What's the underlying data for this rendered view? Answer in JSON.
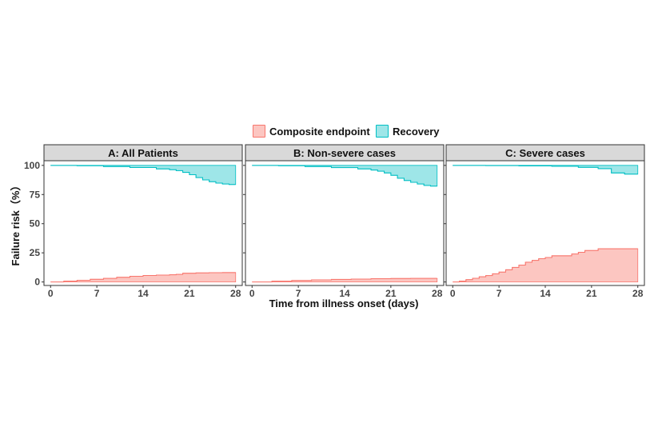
{
  "legend": [
    {
      "label": "Composite endpoint",
      "color": "#f8766d",
      "fill": "#fcc6c1"
    },
    {
      "label": "Recovery",
      "color": "#00bfc4",
      "fill": "#9ee6e8"
    }
  ],
  "axes": {
    "ylabel": "Failure risk（%）",
    "xlabel": "Time from illness onset (days)",
    "xticks": [
      0,
      7,
      14,
      21,
      28
    ],
    "yticks": [
      0,
      25,
      50,
      75,
      100
    ]
  },
  "chart_data": [
    {
      "type": "area",
      "title": "A: All Patients",
      "xlim": [
        -1,
        29
      ],
      "ylim": [
        -3,
        104
      ],
      "series": [
        {
          "name": "Composite endpoint",
          "x": [
            0,
            2,
            4,
            6,
            8,
            10,
            12,
            14,
            16,
            18,
            19,
            20,
            22,
            24,
            26,
            28
          ],
          "y": [
            0,
            0.8,
            1.5,
            2.3,
            3.1,
            4.0,
            4.9,
            5.6,
            5.9,
            6.2,
            6.5,
            7.5,
            7.8,
            8.0,
            8.1,
            8.1
          ]
        },
        {
          "name": "Recovery",
          "x": [
            0,
            4,
            8,
            12,
            16,
            18,
            19,
            20,
            21,
            22,
            23,
            24,
            25,
            26,
            27,
            28
          ],
          "y": [
            100,
            99.7,
            99,
            98.2,
            97,
            96.3,
            95.5,
            94,
            92,
            89.5,
            87.5,
            86,
            84.8,
            84,
            83.6,
            83.6
          ]
        }
      ]
    },
    {
      "type": "area",
      "title": "B: Non-severe cases",
      "xlim": [
        -1,
        29
      ],
      "ylim": [
        -3,
        104
      ],
      "series": [
        {
          "name": "Composite endpoint",
          "x": [
            0,
            3,
            6,
            9,
            12,
            15,
            18,
            21,
            24,
            28
          ],
          "y": [
            0,
            0.7,
            1.3,
            1.8,
            2.2,
            2.5,
            2.8,
            3.0,
            3.1,
            3.2
          ]
        },
        {
          "name": "Recovery",
          "x": [
            0,
            4,
            8,
            12,
            16,
            18,
            19,
            20,
            21,
            22,
            23,
            24,
            25,
            26,
            27,
            28
          ],
          "y": [
            100,
            99.7,
            99,
            98.1,
            97,
            96,
            95,
            93.5,
            91.5,
            89,
            87,
            85.5,
            84,
            82.8,
            82.2,
            82.2
          ]
        }
      ]
    },
    {
      "type": "area",
      "title": "C: Severe cases",
      "xlim": [
        -1,
        29
      ],
      "ylim": [
        -3,
        104
      ],
      "series": [
        {
          "name": "Composite endpoint",
          "x": [
            0,
            1,
            2,
            3,
            4,
            5,
            6,
            7,
            8,
            9,
            10,
            11,
            12,
            13,
            14,
            15,
            18,
            19,
            20,
            22,
            28
          ],
          "y": [
            0,
            0.8,
            2,
            3.2,
            4.5,
            5.5,
            7,
            8.5,
            10.5,
            12.5,
            14.5,
            17,
            18.5,
            20,
            21,
            22.5,
            24,
            25.5,
            27,
            28.5,
            28.5
          ]
        },
        {
          "name": "Recovery",
          "x": [
            0,
            5,
            10,
            15,
            19,
            22,
            24,
            26,
            28
          ],
          "y": [
            100,
            99.8,
            99.5,
            99.2,
            98.3,
            97.2,
            93.5,
            92.5,
            92.5
          ]
        }
      ]
    }
  ]
}
